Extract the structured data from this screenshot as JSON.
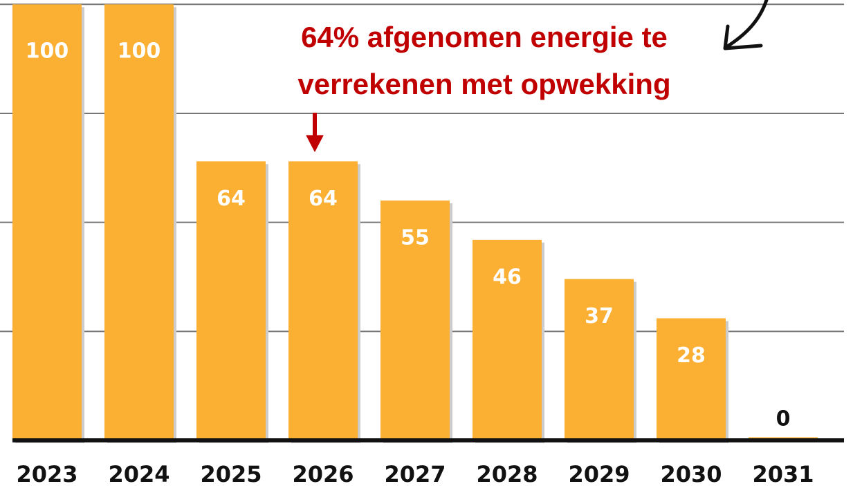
{
  "chart_data": {
    "type": "bar",
    "categories": [
      "2023",
      "2024",
      "2025",
      "2026",
      "2027",
      "2028",
      "2029",
      "2030",
      "2031"
    ],
    "values": [
      100,
      100,
      64,
      64,
      55,
      46,
      37,
      28,
      0
    ],
    "color": "#fbb034",
    "ylim": [
      0,
      101
    ],
    "yticks": [
      25,
      50,
      75,
      100
    ],
    "grid": true,
    "annotation": [
      "64% afgenomen energie te",
      "verrekenen met opwekking"
    ],
    "annotation_color": "#c00000"
  }
}
